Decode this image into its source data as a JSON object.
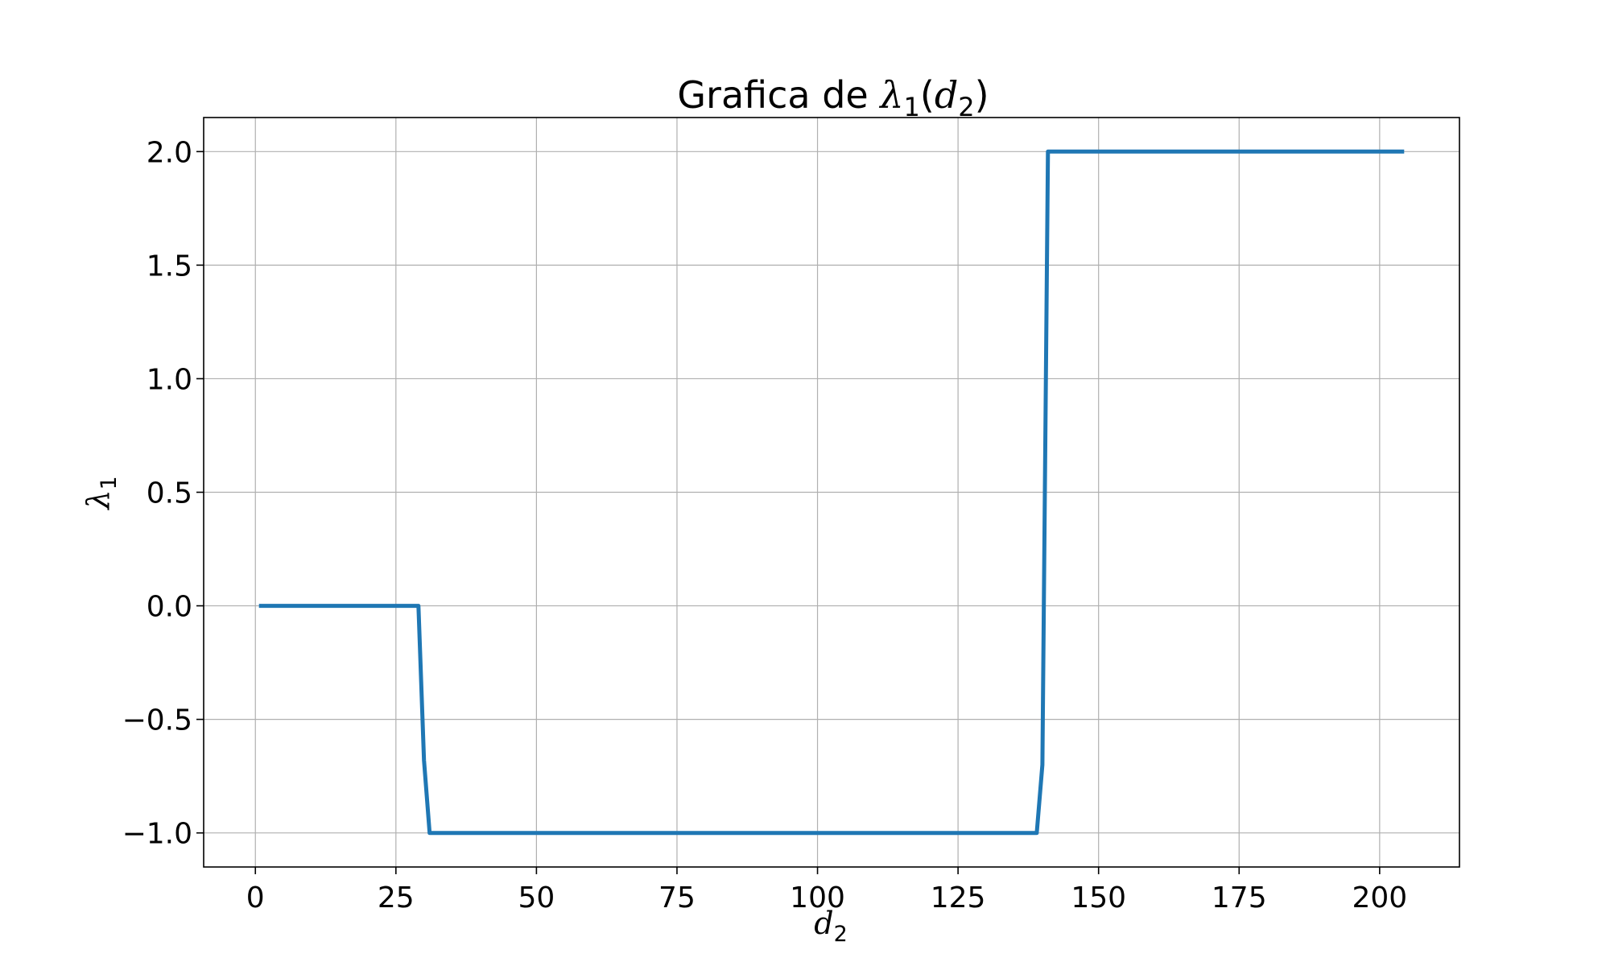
{
  "chart_data": {
    "type": "line",
    "title_prefix": "Grafica de ",
    "title_sym": "λ",
    "title_sub": "1",
    "title_arg": "d",
    "title_arg_sub": "2",
    "xlabel_sym": "d",
    "xlabel_sub": "2",
    "ylabel_sym": "λ",
    "ylabel_sub": "1",
    "xlim": [
      -9.2,
      214.2
    ],
    "ylim": [
      -1.15,
      2.15
    ],
    "xticks": [
      0,
      25,
      50,
      75,
      100,
      125,
      150,
      175,
      200
    ],
    "yticks": [
      -1.0,
      -0.5,
      0.0,
      0.5,
      1.0,
      1.5,
      2.0
    ],
    "xtick_labels": [
      "0",
      "25",
      "50",
      "75",
      "100",
      "125",
      "150",
      "175",
      "200"
    ],
    "ytick_labels": [
      "−1.0",
      "−0.5",
      "0.0",
      "0.5",
      "1.0",
      "1.5",
      "2.0"
    ],
    "grid": true,
    "line_color": "#1f77b4",
    "series": [
      {
        "x": [
          1,
          29,
          30,
          31,
          139,
          140,
          141,
          204
        ],
        "y": [
          0.0,
          0.0,
          -0.68,
          -1.0,
          -1.0,
          -0.7,
          2.0,
          2.0
        ]
      }
    ]
  }
}
